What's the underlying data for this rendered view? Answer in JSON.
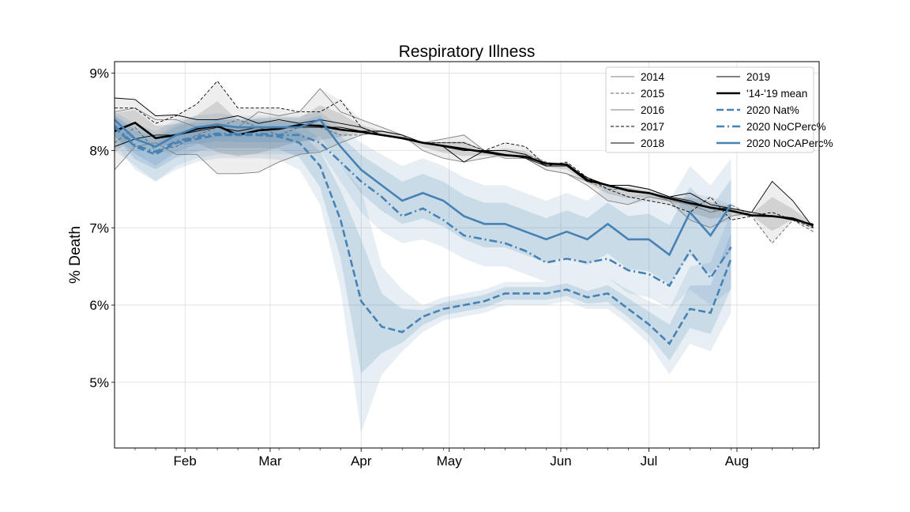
{
  "chart_data": {
    "type": "line",
    "title": "Respiratory Illness",
    "xlabel": "",
    "ylabel": "% Death",
    "xlim": [
      "2020-01-08",
      "2020-09-04"
    ],
    "ylim": [
      4.15,
      9.15
    ],
    "y_ticks": [
      5,
      6,
      7,
      8,
      9
    ],
    "y_tick_labels": [
      "5%",
      "6%",
      "7%",
      "8%",
      "9%"
    ],
    "x_ticks": [
      {
        "date": "2020-02-01",
        "label": "Feb"
      },
      {
        "date": "2020-03-01",
        "label": "Mar"
      },
      {
        "date": "2020-04-01",
        "label": "Apr"
      },
      {
        "date": "2020-05-01",
        "label": "May"
      },
      {
        "date": "2020-06-08",
        "label": "Jun"
      },
      {
        "date": "2020-07-08",
        "label": "Jul"
      },
      {
        "date": "2020-08-07",
        "label": "Aug"
      }
    ],
    "grid": true,
    "legend_position": "top-right",
    "legend_columns": 2,
    "x": [
      "2020-01-08",
      "2020-01-15",
      "2020-01-22",
      "2020-01-29",
      "2020-02-05",
      "2020-02-12",
      "2020-02-19",
      "2020-02-26",
      "2020-03-04",
      "2020-03-11",
      "2020-03-18",
      "2020-03-25",
      "2020-04-01",
      "2020-04-08",
      "2020-04-15",
      "2020-04-22",
      "2020-04-29",
      "2020-05-06",
      "2020-05-13",
      "2020-05-20",
      "2020-05-27",
      "2020-06-03",
      "2020-06-10",
      "2020-06-17",
      "2020-06-24",
      "2020-07-01",
      "2020-07-08",
      "2020-07-15",
      "2020-07-22",
      "2020-07-29",
      "2020-08-05",
      "2020-08-12",
      "2020-08-19",
      "2020-08-26",
      "2020-09-02"
    ],
    "series": [
      {
        "name": "2014",
        "color": "#808080",
        "style": "thin-solid",
        "values": [
          7.75,
          8.05,
          8.1,
          7.95,
          7.95,
          7.7,
          7.7,
          7.72,
          7.85,
          7.95,
          7.98,
          8.1,
          8.2,
          8.25,
          8.2,
          8.0,
          7.9,
          7.85,
          7.9,
          7.95,
          7.9,
          7.75,
          7.7,
          7.55,
          7.35,
          7.3,
          7.4,
          7.35,
          7.1,
          7.0,
          7.15,
          7.2,
          null,
          null,
          null
        ]
      },
      {
        "name": "2015",
        "color": "#606060",
        "style": "thin-dashed",
        "values": [
          8.1,
          8.3,
          8.0,
          8.05,
          8.2,
          8.3,
          8.4,
          8.3,
          8.2,
          8.3,
          8.3,
          8.2,
          8.2,
          8.25,
          8.2,
          8.1,
          8.1,
          8.1,
          8.0,
          8.0,
          7.95,
          7.85,
          7.8,
          7.6,
          7.5,
          7.5,
          7.45,
          7.35,
          7.3,
          7.2,
          7.3,
          7.15,
          6.8,
          7.1,
          6.95
        ]
      },
      {
        "name": "2016",
        "color": "#808080",
        "style": "thin-solid",
        "values": [
          8.5,
          8.55,
          8.4,
          8.4,
          8.3,
          8.35,
          8.3,
          8.5,
          8.45,
          8.5,
          8.8,
          8.5,
          8.4,
          8.3,
          8.2,
          8.1,
          8.15,
          8.2,
          8.0,
          7.9,
          7.9,
          7.75,
          7.7,
          7.6,
          7.55,
          7.5,
          7.45,
          7.35,
          7.3,
          7.2,
          7.25,
          7.2,
          7.15,
          7.1,
          7.05
        ]
      },
      {
        "name": "2017",
        "color": "#000000",
        "style": "thin-dashed",
        "values": [
          8.55,
          8.55,
          8.35,
          8.45,
          8.6,
          8.9,
          8.55,
          8.55,
          8.55,
          8.5,
          8.5,
          8.65,
          8.3,
          8.2,
          8.15,
          8.1,
          8.1,
          8.1,
          8.0,
          8.1,
          8.05,
          7.8,
          7.85,
          7.65,
          7.5,
          7.4,
          7.35,
          7.3,
          7.2,
          7.4,
          7.1,
          7.15,
          7.2,
          7.1,
          7.0
        ]
      },
      {
        "name": "2018",
        "color": "#000000",
        "style": "thin-solid",
        "values": [
          8.68,
          8.66,
          8.45,
          8.46,
          8.4,
          8.4,
          8.45,
          8.35,
          8.4,
          8.35,
          8.4,
          8.35,
          8.3,
          8.2,
          8.15,
          8.1,
          8.05,
          7.85,
          8.0,
          8.0,
          7.95,
          7.8,
          7.8,
          7.65,
          7.55,
          7.55,
          7.5,
          7.4,
          7.35,
          7.25,
          7.25,
          7.2,
          7.15,
          7.1,
          7.05
        ]
      },
      {
        "name": "2019",
        "color": "#000000",
        "style": "thin-solid",
        "values": [
          8.05,
          8.15,
          8.2,
          8.2,
          8.25,
          8.3,
          8.25,
          8.3,
          8.3,
          8.3,
          8.3,
          8.3,
          8.25,
          8.25,
          8.2,
          8.1,
          8.05,
          8.0,
          8.0,
          7.95,
          7.9,
          7.8,
          7.8,
          7.6,
          7.55,
          7.55,
          7.5,
          7.4,
          7.45,
          7.3,
          7.25,
          7.2,
          7.6,
          7.35,
          7.0
        ]
      },
      {
        "name": "'14-'19 mean",
        "color": "#000000",
        "style": "thick-solid",
        "values": [
          8.25,
          8.36,
          8.16,
          8.2,
          8.28,
          8.32,
          8.2,
          8.26,
          8.28,
          8.33,
          8.32,
          8.27,
          8.24,
          8.2,
          8.16,
          8.1,
          8.06,
          8.02,
          7.98,
          7.94,
          7.92,
          7.83,
          7.82,
          7.62,
          7.55,
          7.48,
          7.45,
          7.38,
          7.32,
          7.26,
          7.22,
          7.16,
          7.15,
          7.12,
          7.03
        ]
      },
      {
        "name": "2020 Nat%",
        "color": "#4682b4",
        "style": "thick-dashed",
        "values": [
          8.3,
          8.05,
          7.95,
          8.1,
          8.15,
          8.2,
          8.2,
          8.2,
          8.18,
          8.1,
          7.8,
          7.1,
          6.05,
          5.72,
          5.65,
          5.85,
          5.95,
          6.0,
          6.05,
          6.15,
          6.15,
          6.15,
          6.2,
          6.1,
          6.15,
          5.95,
          5.75,
          5.5,
          5.95,
          5.9,
          6.6,
          null,
          null,
          null,
          null
        ]
      },
      {
        "name": "2020 NoCPerc%",
        "color": "#4682b4",
        "style": "thick-dashdot",
        "values": [
          8.32,
          8.07,
          7.98,
          8.12,
          8.18,
          8.22,
          8.22,
          8.22,
          8.2,
          8.2,
          8.1,
          7.85,
          7.6,
          7.4,
          7.15,
          7.25,
          7.1,
          6.9,
          6.85,
          6.8,
          6.7,
          6.55,
          6.6,
          6.55,
          6.6,
          6.45,
          6.4,
          6.25,
          6.7,
          6.35,
          6.75,
          null,
          null,
          null,
          null
        ]
      },
      {
        "name": "2020 NoCAPerc%",
        "color": "#4682b4",
        "style": "thick-solid",
        "values": [
          8.4,
          8.15,
          8.05,
          8.2,
          8.3,
          8.33,
          8.3,
          8.3,
          8.3,
          8.3,
          8.4,
          8.05,
          7.75,
          7.55,
          7.35,
          7.45,
          7.35,
          7.15,
          7.05,
          7.05,
          6.95,
          6.85,
          6.95,
          6.85,
          7.05,
          6.85,
          6.85,
          6.65,
          7.2,
          6.9,
          7.3,
          null,
          null,
          null,
          null
        ]
      }
    ],
    "bands": [
      {
        "of": "2020 NoCAPerc%",
        "lower": [
          8.0,
          7.8,
          7.6,
          7.8,
          7.9,
          7.95,
          7.95,
          7.95,
          7.95,
          7.95,
          8.0,
          7.6,
          7.2,
          6.95,
          6.8,
          6.85,
          6.75,
          6.6,
          6.5,
          6.5,
          6.4,
          6.3,
          6.35,
          6.25,
          6.35,
          6.15,
          6.1,
          5.95,
          6.2,
          6.0,
          6.2,
          null,
          null,
          null,
          null
        ],
        "upper": [
          8.5,
          8.35,
          8.25,
          8.4,
          8.45,
          8.48,
          8.45,
          8.45,
          8.45,
          8.45,
          8.5,
          8.3,
          8.1,
          7.95,
          7.8,
          7.9,
          7.8,
          7.65,
          7.55,
          7.55,
          7.45,
          7.35,
          7.45,
          7.35,
          7.55,
          7.4,
          7.45,
          7.35,
          7.8,
          7.55,
          7.9,
          null,
          null,
          null,
          null
        ]
      },
      {
        "of": "2020 Nat%",
        "lower": [
          8.1,
          7.75,
          7.6,
          7.75,
          7.85,
          7.9,
          7.9,
          7.9,
          7.88,
          7.75,
          7.3,
          6.2,
          4.35,
          5.1,
          5.4,
          5.65,
          5.8,
          5.85,
          5.9,
          6.0,
          6.0,
          6.0,
          6.05,
          5.95,
          5.95,
          5.75,
          5.5,
          5.1,
          5.5,
          5.4,
          5.9,
          null,
          null,
          null,
          null
        ],
        "upper": [
          8.45,
          8.3,
          8.2,
          8.35,
          8.35,
          8.4,
          8.4,
          8.4,
          8.38,
          8.35,
          8.15,
          7.8,
          7.5,
          6.5,
          6.2,
          6.0,
          6.1,
          6.15,
          6.2,
          6.3,
          6.3,
          6.3,
          6.35,
          6.25,
          6.35,
          6.2,
          6.05,
          5.95,
          6.5,
          6.55,
          7.2,
          null,
          null,
          null,
          null
        ]
      }
    ],
    "legend": [
      {
        "label": "2014",
        "color": "#808080",
        "style": "thin-solid"
      },
      {
        "label": "2015",
        "color": "#606060",
        "style": "thin-dashed"
      },
      {
        "label": "2016",
        "color": "#808080",
        "style": "thin-solid"
      },
      {
        "label": "2017",
        "color": "#000000",
        "style": "thin-dashed"
      },
      {
        "label": "2018",
        "color": "#000000",
        "style": "thin-solid"
      },
      {
        "label": "2019",
        "color": "#000000",
        "style": "thin-solid"
      },
      {
        "label": "'14-'19 mean",
        "color": "#000000",
        "style": "thick-solid"
      },
      {
        "label": "2020 Nat%",
        "color": "#4682b4",
        "style": "thick-dashed"
      },
      {
        "label": "2020 NoCPerc%",
        "color": "#4682b4",
        "style": "thick-dashdot"
      },
      {
        "label": "2020 NoCAPerc%",
        "color": "#4682b4",
        "style": "thick-solid"
      }
    ],
    "colors": {
      "baseline_band": "#9e9e9e",
      "covid_band": "#4682b4"
    }
  }
}
